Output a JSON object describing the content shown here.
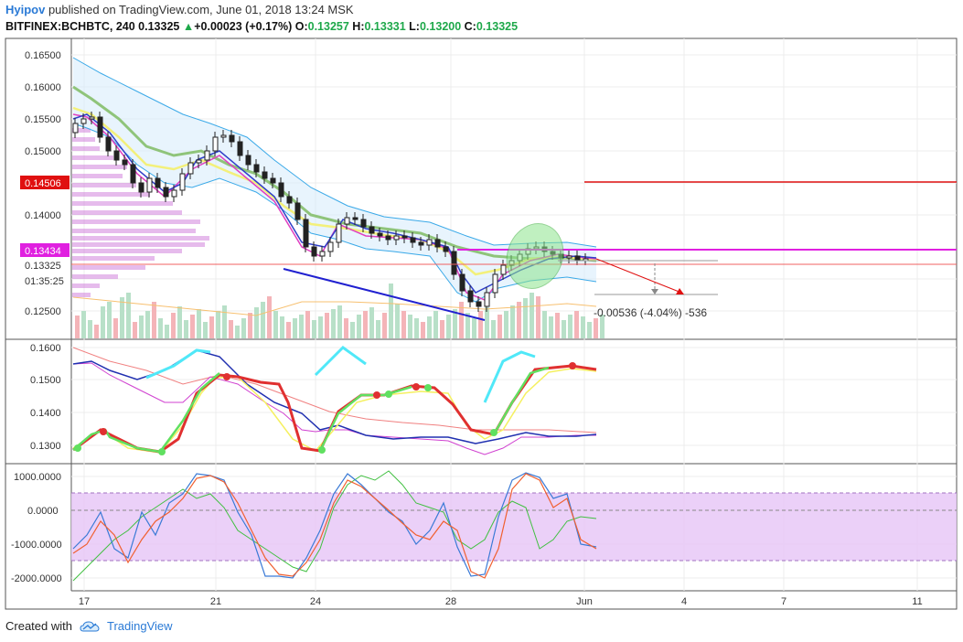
{
  "header": {
    "user": "Hyipov",
    "published_text": " published on TradingView.com, June 01, 2018 13:24 MSK",
    "symbol": "BITFINEX:BCHBTC, 240",
    "last": "0.13325",
    "change": "+0.00023 (+0.17%)",
    "o_label": "O:",
    "o": "0.13257",
    "h_label": "H:",
    "h": "0.13331",
    "l_label": "L:",
    "l": "0.13200",
    "c_label": "C:",
    "c": "0.13325"
  },
  "price_axis": {
    "ticks": [
      "0.16500",
      "0.16000",
      "0.15500",
      "0.15000",
      "0.14000",
      "0.12500"
    ],
    "red_label": "0.14506",
    "magenta_label": "0.13434",
    "price_label": "0.13325",
    "countdown": "01:35:25"
  },
  "measure_text": "-0.00536 (-4.04%) -536",
  "osc1_ticks": [
    "0.1600",
    "0.1500",
    "0.1400",
    "0.1300"
  ],
  "osc2_ticks": [
    "1000.0000",
    "0.0000",
    "-1000.0000",
    "-2000.0000"
  ],
  "time_ticks": [
    "17",
    "21",
    "24",
    "28",
    "Jun",
    "4",
    "7",
    "11"
  ],
  "colors": {
    "accent_blue": "#2a7ad6",
    "up_green": "#1ea84a",
    "red_level": "#e01010",
    "magenta_level": "#e020e0",
    "stoch_band": "#e8c8f7"
  },
  "footer": {
    "created_with": "Created with",
    "brand": "TradingView"
  }
}
